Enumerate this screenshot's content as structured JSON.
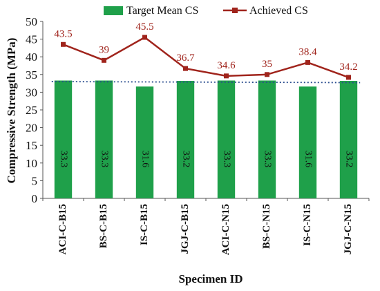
{
  "chart_data": {
    "type": "bar",
    "categories": [
      "ACI-C-B15",
      "BS-C-B15",
      "IS-C-B15",
      "JGJ-C-B15",
      "ACI-C-N15",
      "BS-C-N15",
      "IS-C-N15",
      "JGJ-C-N15"
    ],
    "series": [
      {
        "name": "Target Mean CS",
        "type": "bar",
        "values": [
          33.3,
          33.3,
          31.6,
          33.2,
          33.3,
          33.3,
          31.6,
          33.2
        ],
        "color": "#1fa04a",
        "labels": [
          "33.3",
          "33.3",
          "31.6",
          "33.2",
          "33.3",
          "33.3",
          "31.6",
          "33.2"
        ]
      },
      {
        "name": "Achieved CS",
        "type": "line",
        "values": [
          43.5,
          39,
          45.5,
          36.7,
          34.6,
          35,
          38.4,
          34.2
        ],
        "color": "#a0241c",
        "labels": [
          "43.5",
          "39",
          "45.5",
          "36.7",
          "34.6",
          "35",
          "38.4",
          "34.2"
        ]
      }
    ],
    "trendline": {
      "style": "dotted",
      "color": "#2a4d8f",
      "from": 33.0,
      "to": 32.7
    },
    "xlabel": "Specimen ID",
    "ylabel": "Compressive Strength (MPa)",
    "ylim": [
      0,
      50
    ],
    "yticks": [
      "0",
      "5",
      "10",
      "15",
      "20",
      "25",
      "30",
      "35",
      "40",
      "45",
      "50"
    ],
    "grid": false,
    "legend": "top"
  }
}
